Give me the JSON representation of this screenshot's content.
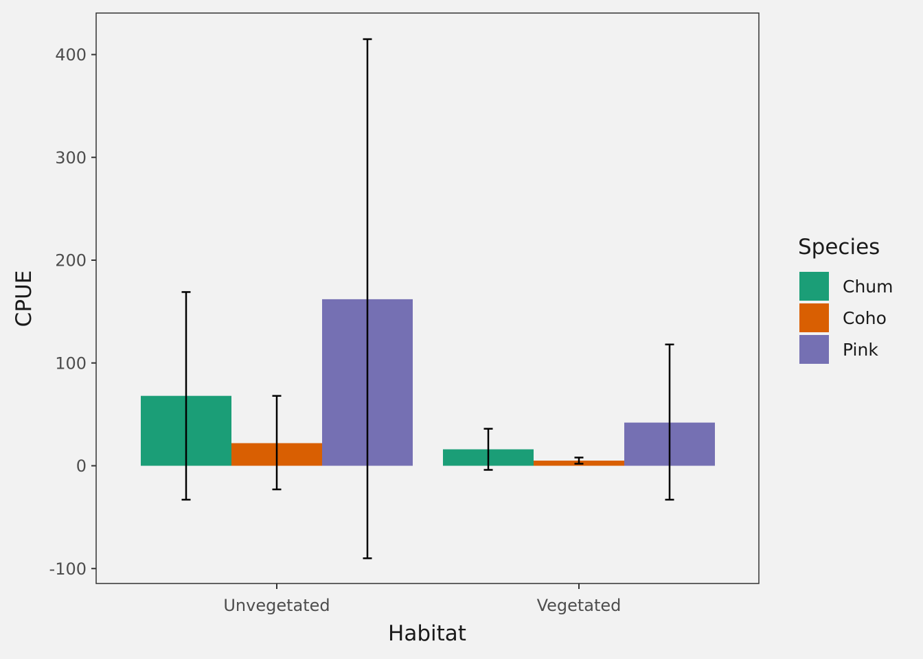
{
  "chart_data": {
    "type": "bar",
    "xlabel": "Habitat",
    "ylabel": "CPUE",
    "categories": [
      "Unvegetated",
      "Vegetated"
    ],
    "series": [
      {
        "name": "Chum",
        "color": "#1b9e77",
        "values": [
          68,
          16
        ],
        "error_low": [
          -33,
          -4
        ],
        "error_high": [
          169,
          36
        ]
      },
      {
        "name": "Coho",
        "color": "#d95f02",
        "values": [
          22,
          5
        ],
        "error_low": [
          -23,
          2
        ],
        "error_high": [
          68,
          8
        ]
      },
      {
        "name": "Pink",
        "color": "#7570b3",
        "values": [
          162,
          42
        ],
        "error_low": [
          -90,
          -33
        ],
        "error_high": [
          415,
          118
        ]
      }
    ],
    "ylim": [
      -115,
      440
    ],
    "yticks": [
      "-100",
      "0",
      "100",
      "200",
      "300",
      "400"
    ],
    "grid": false,
    "legend": {
      "title": "Species",
      "position": "right"
    }
  }
}
